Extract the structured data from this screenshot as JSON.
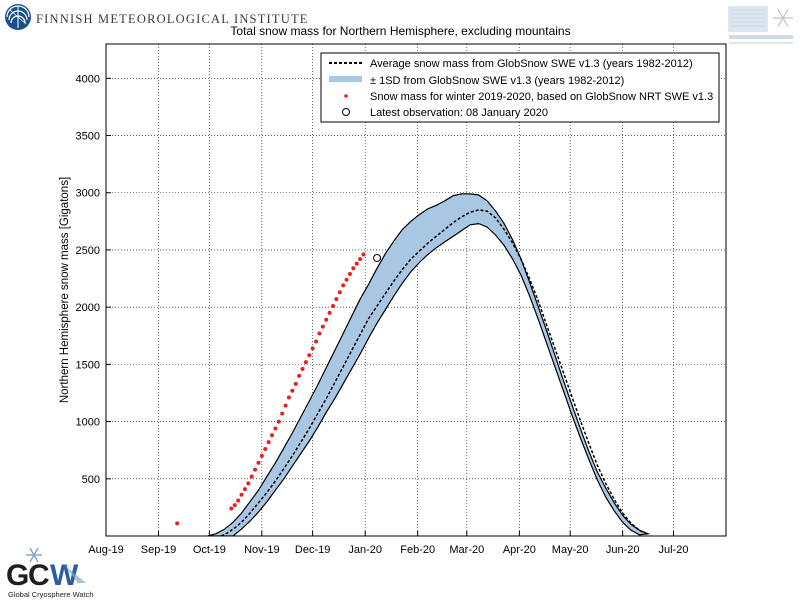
{
  "header": {
    "institute_name": "FINNISH METEOROLOGICAL INSTITUTE",
    "brand_color": "#1b4f8a"
  },
  "chart_data": {
    "type": "line",
    "title": "Total snow mass for Northern Hemisphere, excluding mountains",
    "xlabel": "",
    "ylabel": "Northern Hemisphere snow mass [Gigatons]",
    "x_unit": "days since 2019-08-01",
    "xlim": [
      0,
      366
    ],
    "ylim": [
      0,
      4300
    ],
    "yticks": [
      500,
      1000,
      1500,
      2000,
      2500,
      3000,
      3500,
      4000
    ],
    "x_ticks": [
      {
        "label": "Aug-19",
        "day": 0
      },
      {
        "label": "Sep-19",
        "day": 31
      },
      {
        "label": "Oct-19",
        "day": 61
      },
      {
        "label": "Nov-19",
        "day": 92
      },
      {
        "label": "Dec-19",
        "day": 122
      },
      {
        "label": "Jan-20",
        "day": 153
      },
      {
        "label": "Feb-20",
        "day": 184
      },
      {
        "label": "Mar-20",
        "day": 213
      },
      {
        "label": "Apr-20",
        "day": 244
      },
      {
        "label": "May-20",
        "day": 274
      },
      {
        "label": "Jun-20",
        "day": 305
      },
      {
        "label": "Jul-20",
        "day": 335
      }
    ],
    "legend": {
      "position": "top-right",
      "entries": [
        "Average snow mass from GlobSnow SWE v1.3 (years 1982-2012)",
        "± 1SD from GlobSnow SWE v1.3 (years 1982-2012)",
        "Snow mass for winter 2019-2020, based on GlobSnow NRT SWE v1.3",
        "Latest observation: 08 January 2020"
      ]
    },
    "colors": {
      "band": "#a9c6e2",
      "average": "#000000",
      "observed": "#e8201c",
      "latest": "#000000"
    },
    "series": [
      {
        "name": "Average snow mass from GlobSnow SWE v1.3 (years 1982-2012)",
        "style": "dashed",
        "x": [
          68,
          72,
          76,
          80,
          85,
          90,
          95,
          100,
          105,
          110,
          115,
          120,
          125,
          130,
          135,
          140,
          145,
          150,
          155,
          160,
          165,
          170,
          175,
          180,
          185,
          190,
          195,
          200,
          205,
          210,
          215,
          220,
          225,
          230,
          235,
          240,
          245,
          250,
          255,
          260,
          265,
          270,
          275,
          280,
          285,
          290,
          295,
          300,
          305,
          310,
          315,
          320
        ],
        "y": [
          0,
          30,
          70,
          120,
          200,
          290,
          380,
          480,
          590,
          700,
          820,
          940,
          1070,
          1200,
          1340,
          1480,
          1620,
          1760,
          1900,
          2010,
          2120,
          2230,
          2330,
          2420,
          2490,
          2560,
          2620,
          2680,
          2740,
          2790,
          2830,
          2850,
          2840,
          2780,
          2680,
          2560,
          2420,
          2250,
          2060,
          1850,
          1640,
          1430,
          1220,
          1010,
          810,
          620,
          460,
          320,
          200,
          110,
          50,
          10
        ]
      },
      {
        "name": "± 1SD upper bound",
        "x": [
          60,
          65,
          70,
          75,
          80,
          85,
          90,
          95,
          100,
          105,
          110,
          115,
          120,
          125,
          130,
          135,
          140,
          145,
          150,
          155,
          160,
          165,
          170,
          175,
          180,
          185,
          190,
          195,
          200,
          205,
          210,
          215,
          220,
          225,
          230,
          235,
          240,
          245,
          250,
          255,
          260,
          265,
          270,
          275,
          280,
          285,
          290,
          295,
          300,
          305,
          310,
          315,
          320
        ],
        "y": [
          0,
          20,
          60,
          120,
          200,
          300,
          400,
          520,
          640,
          770,
          900,
          1040,
          1180,
          1320,
          1470,
          1620,
          1770,
          1920,
          2070,
          2200,
          2340,
          2470,
          2580,
          2680,
          2750,
          2810,
          2860,
          2890,
          2930,
          2975,
          2990,
          2990,
          2980,
          2930,
          2840,
          2730,
          2590,
          2420,
          2220,
          2010,
          1800,
          1580,
          1360,
          1150,
          940,
          740,
          560,
          420,
          290,
          180,
          100,
          50,
          20
        ]
      },
      {
        "name": "± 1SD lower bound",
        "x": [
          75,
          80,
          85,
          90,
          95,
          100,
          105,
          110,
          115,
          120,
          125,
          130,
          135,
          140,
          145,
          150,
          155,
          160,
          165,
          170,
          175,
          180,
          185,
          190,
          195,
          200,
          205,
          210,
          215,
          220,
          225,
          230,
          235,
          240,
          245,
          250,
          255,
          260,
          265,
          270,
          275,
          280,
          285,
          290,
          295,
          300,
          305,
          310,
          315
        ],
        "y": [
          0,
          60,
          130,
          210,
          300,
          400,
          500,
          610,
          720,
          830,
          950,
          1080,
          1200,
          1330,
          1460,
          1590,
          1730,
          1860,
          1980,
          2100,
          2210,
          2310,
          2390,
          2460,
          2520,
          2570,
          2620,
          2670,
          2720,
          2730,
          2700,
          2630,
          2540,
          2420,
          2280,
          2100,
          1900,
          1690,
          1480,
          1270,
          1060,
          860,
          670,
          490,
          340,
          220,
          120,
          50,
          10
        ]
      },
      {
        "name": "Snow mass for winter 2019-2020, based on GlobSnow NRT SWE v1.3",
        "style": "dots",
        "x": [
          42,
          74,
          76,
          78,
          80,
          82,
          84,
          86,
          88,
          90,
          92,
          94,
          96,
          98,
          100,
          102,
          104,
          106,
          108,
          110,
          112,
          114,
          116,
          118,
          120,
          122,
          124,
          126,
          128,
          130,
          132,
          134,
          136,
          138,
          140,
          142,
          144,
          146,
          148,
          150,
          152
        ],
        "y": [
          110,
          240,
          270,
          310,
          360,
          410,
          460,
          520,
          580,
          640,
          700,
          760,
          820,
          880,
          940,
          1000,
          1070,
          1140,
          1210,
          1270,
          1330,
          1400,
          1460,
          1520,
          1580,
          1640,
          1700,
          1770,
          1830,
          1890,
          1950,
          2010,
          2070,
          2130,
          2190,
          2240,
          2290,
          2340,
          2380,
          2420,
          2460
        ]
      }
    ],
    "latest_observation": {
      "label": "08 January 2020",
      "day": 160,
      "value": 2430
    }
  }
}
